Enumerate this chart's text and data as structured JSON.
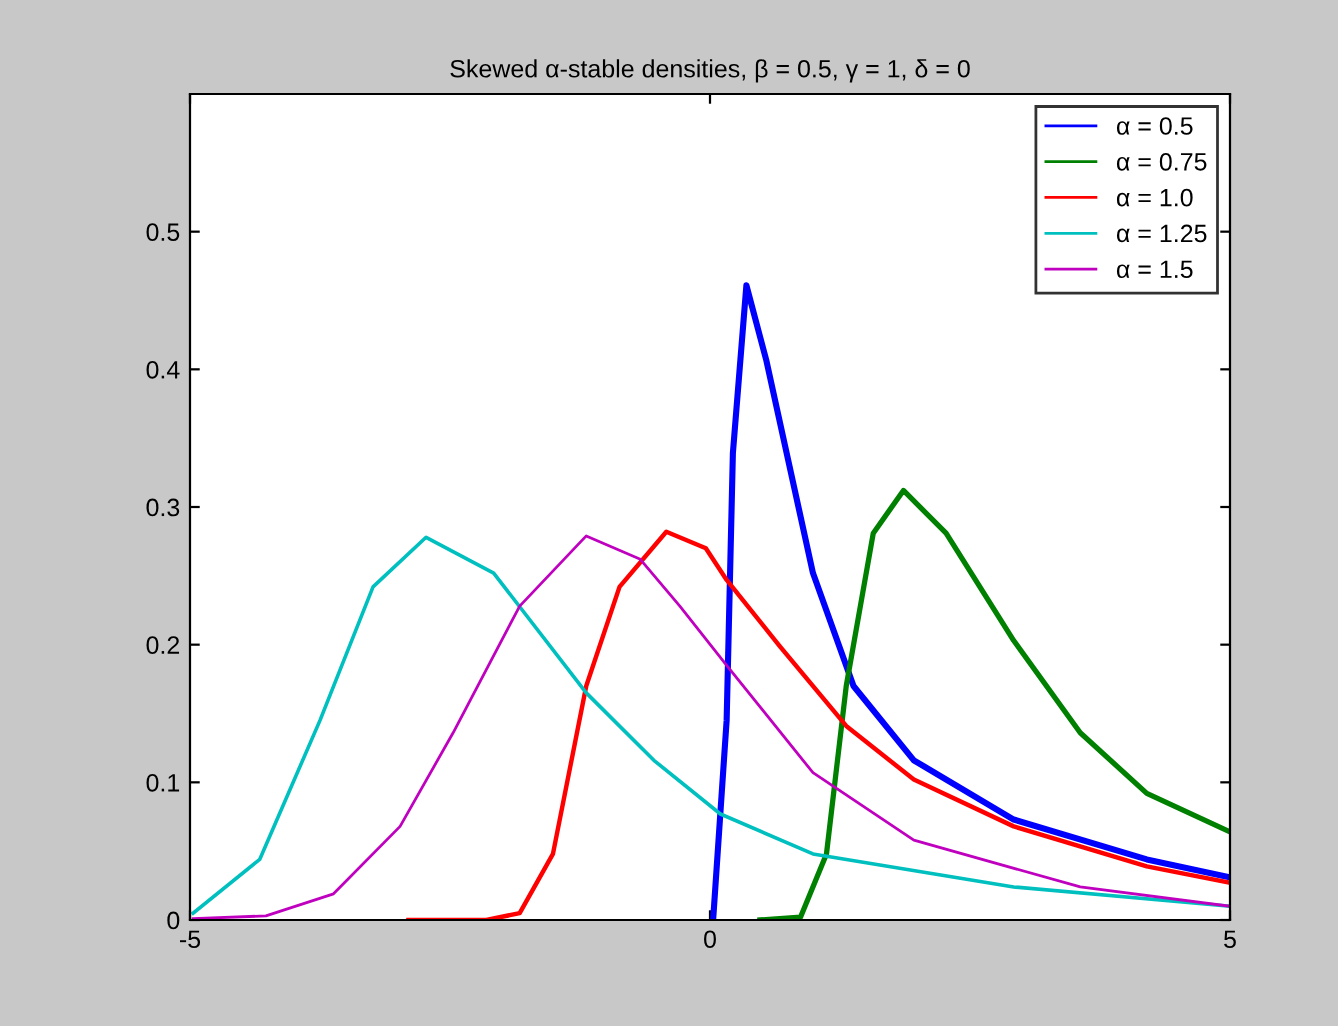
{
  "chart_data": {
    "type": "line",
    "title": "Skewed α-stable densities, β = 0.5, γ = 1, δ = 0",
    "xlim": [
      -5,
      5
    ],
    "xticks": [
      -5,
      0,
      5
    ],
    "ylim": [
      0,
      0.6
    ],
    "yticks": [
      0,
      0.1,
      0.2,
      0.3,
      0.4,
      0.5
    ],
    "grid": false,
    "legend": "top right",
    "marker": "none",
    "line_style": "solid",
    "series": [
      {
        "name": "α = 0.5",
        "color": "#0000ff",
        "x": [
          0.03,
          0.16,
          0.22,
          0.35,
          0.54,
          0.99,
          1.38,
          1.96,
          2.92,
          4.2,
          5
        ],
        "values": [
          0,
          0.145,
          0.339,
          0.461,
          0.407,
          0.252,
          0.17,
          0.116,
          0.073,
          0.044,
          0.031
        ]
      },
      {
        "name": "α = 0.75",
        "color": "#008000",
        "x": [
          0.48,
          0.87,
          1.12,
          1.31,
          1.57,
          1.86,
          2.27,
          2.92,
          3.56,
          4.2,
          5
        ],
        "values": [
          0,
          0.002,
          0.048,
          0.17,
          0.281,
          0.312,
          0.281,
          0.203,
          0.136,
          0.092,
          0.064
        ]
      },
      {
        "name": "α = 1.0",
        "color": "#ff0000",
        "x": [
          -2.9,
          -2.15,
          -1.83,
          -1.51,
          -1.19,
          -0.87,
          -0.42,
          -0.04,
          0.16,
          0.67,
          1.31,
          1.96,
          2.92,
          4.2,
          5
        ],
        "values": [
          0,
          0,
          0.005,
          0.048,
          0.17,
          0.242,
          0.282,
          0.27,
          0.247,
          0.199,
          0.141,
          0.102,
          0.068,
          0.039,
          0.027
        ]
      },
      {
        "name": "α = 1.25",
        "color": "#00bfbf",
        "x": [
          -4.97,
          -4.33,
          -3.75,
          -3.24,
          -2.73,
          -2.08,
          -1.19,
          -0.54,
          0.1,
          0.99,
          2.92,
          5
        ],
        "values": [
          0.005,
          0.044,
          0.145,
          0.242,
          0.278,
          0.252,
          0.165,
          0.116,
          0.077,
          0.048,
          0.024,
          0.01
        ]
      },
      {
        "name": "α = 1.5",
        "color": "#bf00bf",
        "x": [
          -4.97,
          -4.27,
          -3.62,
          -2.98,
          -2.47,
          -1.83,
          -1.19,
          -0.67,
          -0.29,
          0.16,
          0.99,
          1.96,
          3.56,
          5
        ],
        "values": [
          0.001,
          0.003,
          0.019,
          0.068,
          0.136,
          0.228,
          0.279,
          0.262,
          0.228,
          0.185,
          0.107,
          0.058,
          0.024,
          0.01
        ]
      }
    ]
  }
}
